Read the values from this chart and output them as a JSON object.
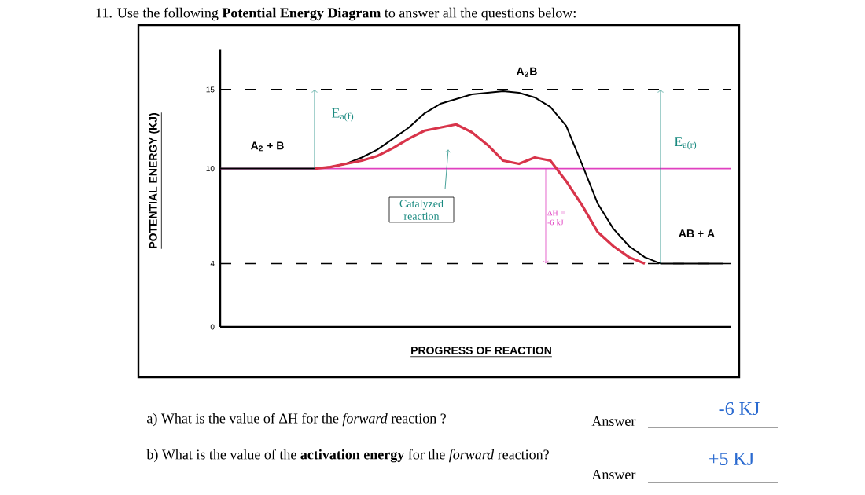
{
  "chart_data": {
    "type": "line",
    "title": "11.   Use the following **Potential Energy Diagram** to answer all the questions below:",
    "xlabel": "PROGRESS OF REACTION",
    "ylabel": "POTENTIAL ENERGY (KJ)",
    "categories": [
      null,
      null,
      null,
      null,
      null,
      null,
      null,
      null,
      null,
      null,
      null,
      null,
      null,
      null,
      null,
      null,
      null,
      null,
      null,
      null,
      null,
      null,
      null,
      null,
      null,
      null,
      null,
      null,
      null,
      null,
      null,
      null,
      null
    ],
    "series": [
      {
        "color": "#000000",
        "values": [
          10,
          10,
          10,
          10,
          10,
          10,
          10,
          10.1,
          10.3,
          10.7,
          11.2,
          11.9,
          12.6,
          13.5,
          14.1,
          14.4,
          14.7,
          14.8,
          14.9,
          14.8,
          14.5,
          13.9,
          12.7,
          10.3,
          7.8,
          6.2,
          5.1,
          4.4,
          4,
          4,
          4,
          4,
          4
        ]
      },
      {
        "color": "#d8344a",
        "values": [
          null,
          null,
          null,
          null,
          null,
          null,
          10,
          10.1,
          10.3,
          10.5,
          10.8,
          11.3,
          11.9,
          12.4,
          12.6,
          12.8,
          12.3,
          11.5,
          10.5,
          10.3,
          10.7,
          10.5,
          9.2,
          7.7,
          6.0,
          5.1,
          4.4,
          4,
          null,
          null,
          null,
          null,
          null
        ]
      }
    ],
    "ylim": [
      0,
      17.5
    ],
    "yticks": [
      0,
      4,
      10,
      15
    ],
    "tick_labels": "y",
    "ref_lines": [
      {
        "axis": "y",
        "value": 15,
        "color": "#000000",
        "line_style": "dashed"
      },
      {
        "axis": "y",
        "value": 4,
        "color": "#000000",
        "line_style": "dashed"
      },
      {
        "axis": "y",
        "value": 10,
        "color": "#e040c0",
        "line_style": "solid"
      }
    ],
    "annotations": [
      "A$_{2}$B",
      "A$_{2}$ + B",
      "AB + A",
      "E$_{a(f)}$",
      "E$_{a(r)}$",
      "Catalyzed reaction",
      "ΔH = -6 kJ",
      "a)   What is the value of ΔH for the *forward* reaction ?",
      "Answer",
      "-6 KJ",
      "b)   What is the value of the **activation energy** for the *forward* reaction?",
      "Answer",
      "+5 KJ"
    ]
  }
}
